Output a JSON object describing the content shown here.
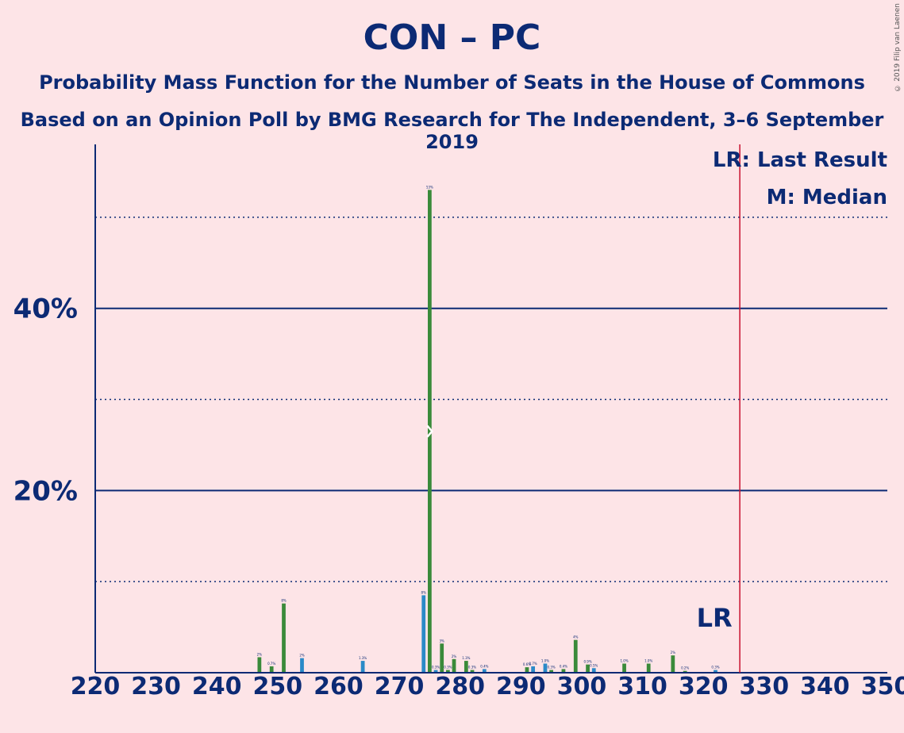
{
  "title": "CON – PC",
  "subtitle1": "Probability Mass Function for the Number of Seats in the House of Commons",
  "subtitle2": "Based on an Opinion Poll by BMG Research for The Independent, 3–6 September 2019",
  "copyright": "© 2019 Filip van Laenen",
  "legend": {
    "last_result": "LR: Last Result",
    "median": "M: Median",
    "lr_marker": "LR"
  },
  "colors": {
    "background": "#fde4e7",
    "axis": "#0c2a74",
    "bar_green": "#3a8a3a",
    "bar_blue": "#2a8ac8",
    "last_result_line": "#c8102e"
  },
  "chart_data": {
    "type": "bar",
    "title": "CON – PC",
    "xlabel": "",
    "ylabel": "",
    "xlim": [
      220,
      350
    ],
    "ylim": [
      0,
      58
    ],
    "x_ticks": [
      220,
      230,
      240,
      250,
      260,
      270,
      280,
      290,
      300,
      310,
      320,
      330,
      340,
      350
    ],
    "y_ticks_labeled": [
      {
        "value": 20,
        "label": "20%"
      },
      {
        "value": 40,
        "label": "40%"
      }
    ],
    "y_gridlines_dotted": [
      10,
      30,
      50
    ],
    "last_result": 326,
    "median": 275,
    "bars": [
      {
        "x": 247,
        "value": 1.7,
        "label": "2%",
        "color": "green"
      },
      {
        "x": 249,
        "value": 0.7,
        "label": "0.7%",
        "color": "green"
      },
      {
        "x": 251,
        "value": 7.6,
        "label": "8%",
        "color": "green"
      },
      {
        "x": 254,
        "value": 1.6,
        "label": "2%",
        "color": "blue"
      },
      {
        "x": 264,
        "value": 1.3,
        "label": "1.3%",
        "color": "blue"
      },
      {
        "x": 274,
        "value": 8.5,
        "label": "8%",
        "color": "blue"
      },
      {
        "x": 275,
        "value": 53,
        "label": "53%",
        "color": "green"
      },
      {
        "x": 276,
        "value": 0.3,
        "label": "0.3%",
        "color": "blue"
      },
      {
        "x": 277,
        "value": 3.2,
        "label": "3%",
        "color": "green"
      },
      {
        "x": 278,
        "value": 0.3,
        "label": "0.3%",
        "color": "green"
      },
      {
        "x": 279,
        "value": 1.5,
        "label": "2%",
        "color": "green"
      },
      {
        "x": 281,
        "value": 1.3,
        "label": "1.3%",
        "color": "green"
      },
      {
        "x": 282,
        "value": 0.3,
        "label": "0.3%",
        "color": "green"
      },
      {
        "x": 284,
        "value": 0.4,
        "label": "0.4%",
        "color": "blue"
      },
      {
        "x": 291,
        "value": 0.6,
        "label": "0.6%",
        "color": "green"
      },
      {
        "x": 292,
        "value": 0.7,
        "label": "0.7%",
        "color": "blue"
      },
      {
        "x": 294,
        "value": 1.0,
        "label": "1.0%",
        "color": "blue"
      },
      {
        "x": 295,
        "value": 0.3,
        "label": "0.3%",
        "color": "green"
      },
      {
        "x": 297,
        "value": 0.4,
        "label": "0.4%",
        "color": "green"
      },
      {
        "x": 299,
        "value": 3.6,
        "label": "4%",
        "color": "green"
      },
      {
        "x": 301,
        "value": 0.9,
        "label": "0.9%",
        "color": "green"
      },
      {
        "x": 302,
        "value": 0.5,
        "label": "0.5%",
        "color": "blue"
      },
      {
        "x": 307,
        "value": 1.0,
        "label": "1.0%",
        "color": "green"
      },
      {
        "x": 311,
        "value": 1.0,
        "label": "1.0%",
        "color": "green"
      },
      {
        "x": 315,
        "value": 1.9,
        "label": "2%",
        "color": "green"
      },
      {
        "x": 317,
        "value": 0.2,
        "label": "0.2%",
        "color": "green"
      },
      {
        "x": 322,
        "value": 0.3,
        "label": "0.3%",
        "color": "blue"
      }
    ]
  }
}
